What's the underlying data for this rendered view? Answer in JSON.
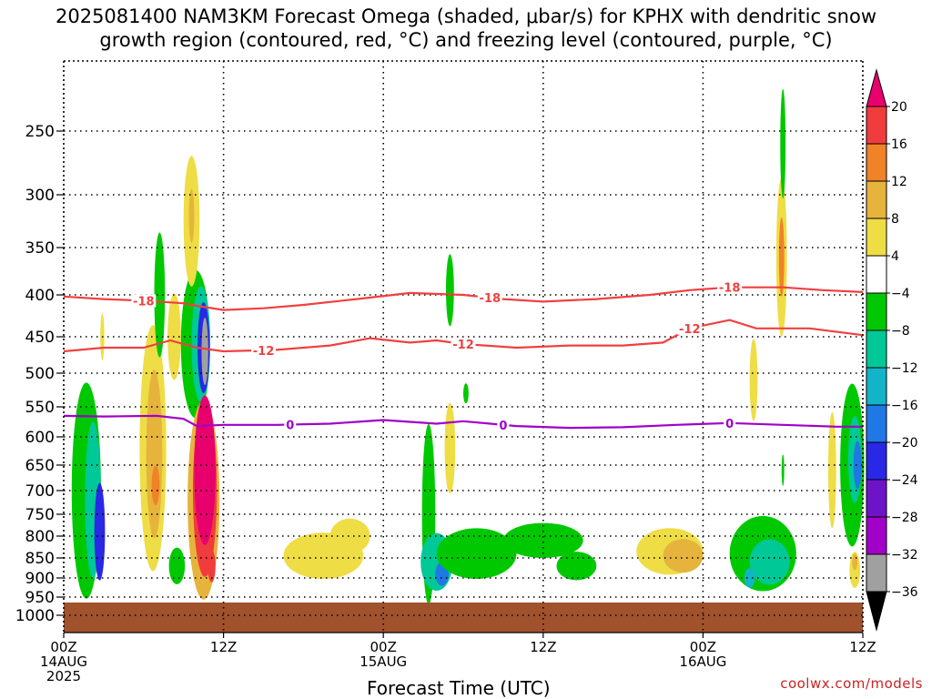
{
  "title_line1": "2025081400 NAM3KM Forecast Omega (shaded, μbar/s) for KPHX with dendritic snow",
  "title_line2": "growth region (contoured, red, °C) and freezing level (contoured, purple, °C)",
  "watermark": "coolwx.com/models",
  "chart_data": {
    "type": "heatmap",
    "title": "2025081400 NAM3KM Forecast Omega (shaded, μbar/s) for KPHX with dendritic snow growth region (contoured, red, °C) and freezing level (contoured, purple, °C)",
    "xlabel": "Forecast Time (UTC)",
    "ylabel": "",
    "x_unit": "forecast hour",
    "xlim": [
      0,
      60
    ],
    "y_unit": "mb",
    "ylim": [
      1040,
      200
    ],
    "x_ticks": [
      {
        "hour": 0,
        "lines": [
          "00Z",
          "14AUG",
          "2025"
        ]
      },
      {
        "hour": 12,
        "lines": [
          "12Z"
        ]
      },
      {
        "hour": 24,
        "lines": [
          "00Z",
          "15AUG"
        ]
      },
      {
        "hour": 36,
        "lines": [
          "12Z"
        ]
      },
      {
        "hour": 48,
        "lines": [
          "00Z",
          "16AUG"
        ]
      },
      {
        "hour": 60,
        "lines": [
          "12Z"
        ]
      }
    ],
    "y_ticks": [
      250,
      300,
      350,
      400,
      450,
      500,
      550,
      600,
      650,
      700,
      750,
      800,
      850,
      900,
      950,
      1000
    ],
    "grid": true,
    "colorbar": {
      "labels": [
        "20",
        "16",
        "12",
        "8",
        "4",
        "−4",
        "−8",
        "−12",
        "−16",
        "−20",
        "−24",
        "−28",
        "−32",
        "−36"
      ],
      "levels": [
        20,
        16,
        12,
        8,
        4,
        -4,
        -8,
        -12,
        -16,
        -20,
        -24,
        -28,
        -32,
        -36
      ],
      "colors": [
        "#e8006c",
        "#f03c3c",
        "#f08228",
        "#e6b43c",
        "#eedd44",
        "#ffffff",
        "#00c800",
        "#00c896",
        "#14b4c8",
        "#1e78e6",
        "#2828e6",
        "#6e14c8",
        "#a000c8",
        "#a0a0a0",
        "#000000"
      ]
    },
    "surface_pressure_mb": 965,
    "surface_color": "#a0522d",
    "contours": [
      {
        "temp": "-18",
        "color": "#f04040",
        "label_hours": [
          6,
          32,
          50
        ],
        "points": [
          [
            0,
            402
          ],
          [
            3,
            405
          ],
          [
            6,
            407
          ],
          [
            9,
            410
          ],
          [
            10,
            413
          ],
          [
            12,
            418
          ],
          [
            15,
            416
          ],
          [
            18,
            412
          ],
          [
            22,
            405
          ],
          [
            26,
            398
          ],
          [
            30,
            400
          ],
          [
            33,
            405
          ],
          [
            36,
            408
          ],
          [
            40,
            405
          ],
          [
            44,
            400
          ],
          [
            47,
            395
          ],
          [
            50,
            392
          ],
          [
            54,
            392
          ],
          [
            57,
            395
          ],
          [
            60,
            397
          ]
        ]
      },
      {
        "temp": "-12",
        "color": "#f04040",
        "label_hours": [
          15,
          30,
          47
        ],
        "points": [
          [
            0,
            470
          ],
          [
            3,
            465
          ],
          [
            6,
            465
          ],
          [
            8,
            455
          ],
          [
            10,
            465
          ],
          [
            12,
            470
          ],
          [
            16,
            468
          ],
          [
            20,
            462
          ],
          [
            23,
            452
          ],
          [
            26,
            458
          ],
          [
            28,
            455
          ],
          [
            30,
            460
          ],
          [
            34,
            465
          ],
          [
            38,
            462
          ],
          [
            42,
            462
          ],
          [
            45,
            458
          ],
          [
            47,
            440
          ],
          [
            50,
            430
          ],
          [
            52,
            440
          ],
          [
            56,
            440
          ],
          [
            60,
            448
          ]
        ]
      },
      {
        "temp": "0",
        "color": "#a000c8",
        "label_hours": [
          17,
          33,
          50
        ],
        "points": [
          [
            0,
            565
          ],
          [
            3,
            566
          ],
          [
            7,
            565
          ],
          [
            9,
            570
          ],
          [
            10,
            582
          ],
          [
            12,
            580
          ],
          [
            16,
            580
          ],
          [
            20,
            578
          ],
          [
            24,
            572
          ],
          [
            28,
            578
          ],
          [
            30,
            574
          ],
          [
            34,
            582
          ],
          [
            38,
            585
          ],
          [
            42,
            584
          ],
          [
            46,
            580
          ],
          [
            50,
            577
          ],
          [
            54,
            580
          ],
          [
            58,
            583
          ],
          [
            60,
            583
          ]
        ]
      }
    ],
    "omega_blobs": [
      {
        "hour": 1.7,
        "p": 700,
        "hw": 1.1,
        "hp": 210,
        "value": -8
      },
      {
        "hour": 2.2,
        "p": 720,
        "hw": 0.6,
        "hp": 160,
        "value": -12
      },
      {
        "hour": 2.7,
        "p": 790,
        "hw": 0.4,
        "hp": 110,
        "value": -24
      },
      {
        "hour": 2.9,
        "p": 450,
        "hw": 0.15,
        "hp": 30,
        "value": 4
      },
      {
        "hour": 6.7,
        "p": 620,
        "hw": 1.0,
        "hp": 210,
        "value": 4
      },
      {
        "hour": 6.8,
        "p": 630,
        "hw": 0.6,
        "hp": 150,
        "value": 8
      },
      {
        "hour": 6.9,
        "p": 690,
        "hw": 0.3,
        "hp": 40,
        "value": 12
      },
      {
        "hour": 7.2,
        "p": 400,
        "hw": 0.4,
        "hp": 70,
        "value": -8
      },
      {
        "hour": 8.3,
        "p": 450,
        "hw": 0.5,
        "hp": 55,
        "value": 4
      },
      {
        "hour": 8.5,
        "p": 870,
        "hw": 0.6,
        "hp": 45,
        "value": -8
      },
      {
        "hour": 9.9,
        "p": 460,
        "hw": 1.1,
        "hp": 95,
        "value": -8
      },
      {
        "hour": 10.3,
        "p": 460,
        "hw": 0.7,
        "hp": 75,
        "value": -12
      },
      {
        "hour": 10.5,
        "p": 465,
        "hw": 0.45,
        "hp": 60,
        "value": -24
      },
      {
        "hour": 10.6,
        "p": 470,
        "hw": 0.25,
        "hp": 45,
        "value": -36
      },
      {
        "hour": 9.6,
        "p": 325,
        "hw": 0.6,
        "hp": 60,
        "value": 4
      },
      {
        "hour": 9.6,
        "p": 320,
        "hw": 0.2,
        "hp": 25,
        "value": 8
      },
      {
        "hour": 10.5,
        "p": 720,
        "hw": 1.2,
        "hp": 200,
        "value": 8
      },
      {
        "hour": 10.6,
        "p": 700,
        "hw": 0.9,
        "hp": 170,
        "value": 16
      },
      {
        "hour": 10.6,
        "p": 660,
        "hw": 0.8,
        "hp": 140,
        "value": 20
      },
      {
        "hour": 11.1,
        "p": 870,
        "hw": 0.3,
        "hp": 40,
        "value": 16
      },
      {
        "hour": 19.5,
        "p": 845,
        "hw": 3.0,
        "hp": 55,
        "value": 4
      },
      {
        "hour": 21.5,
        "p": 800,
        "hw": 1.5,
        "hp": 40,
        "value": 4
      },
      {
        "hour": 27.4,
        "p": 750,
        "hw": 0.5,
        "hp": 190,
        "value": -8
      },
      {
        "hour": 28.0,
        "p": 860,
        "hw": 1.2,
        "hp": 70,
        "value": -12
      },
      {
        "hour": 28.4,
        "p": 890,
        "hw": 0.5,
        "hp": 30,
        "value": -20
      },
      {
        "hour": 31.0,
        "p": 840,
        "hw": 3.0,
        "hp": 60,
        "value": -8
      },
      {
        "hour": 36.0,
        "p": 810,
        "hw": 3.0,
        "hp": 40,
        "value": -8
      },
      {
        "hour": 38.5,
        "p": 870,
        "hw": 1.5,
        "hp": 35,
        "value": -8
      },
      {
        "hour": 29.0,
        "p": 620,
        "hw": 0.4,
        "hp": 80,
        "value": 4
      },
      {
        "hour": 29.0,
        "p": 395,
        "hw": 0.3,
        "hp": 40,
        "value": -8
      },
      {
        "hour": 30.2,
        "p": 530,
        "hw": 0.2,
        "hp": 15,
        "value": -8
      },
      {
        "hour": 45.5,
        "p": 835,
        "hw": 2.5,
        "hp": 55,
        "value": 4
      },
      {
        "hour": 46.5,
        "p": 845,
        "hw": 1.5,
        "hp": 40,
        "value": 8
      },
      {
        "hour": 52.5,
        "p": 840,
        "hw": 2.5,
        "hp": 90,
        "value": -8
      },
      {
        "hour": 53.0,
        "p": 860,
        "hw": 1.5,
        "hp": 55,
        "value": -12
      },
      {
        "hour": 51.5,
        "p": 900,
        "hw": 0.4,
        "hp": 25,
        "value": -16
      },
      {
        "hour": 53.9,
        "p": 360,
        "hw": 0.4,
        "hp": 80,
        "value": 4
      },
      {
        "hour": 53.9,
        "p": 360,
        "hw": 0.2,
        "hp": 40,
        "value": 12
      },
      {
        "hour": 54.0,
        "p": 260,
        "hw": 0.2,
        "hp": 40,
        "value": -8
      },
      {
        "hour": 51.8,
        "p": 510,
        "hw": 0.3,
        "hp": 60,
        "value": 4
      },
      {
        "hour": 54.0,
        "p": 660,
        "hw": 0.1,
        "hp": 30,
        "value": -8
      },
      {
        "hour": 59.2,
        "p": 650,
        "hw": 0.9,
        "hp": 150,
        "value": -8
      },
      {
        "hour": 59.4,
        "p": 640,
        "hw": 0.5,
        "hp": 80,
        "value": -12
      },
      {
        "hour": 59.6,
        "p": 650,
        "hw": 0.3,
        "hp": 45,
        "value": -20
      },
      {
        "hour": 57.7,
        "p": 660,
        "hw": 0.3,
        "hp": 110,
        "value": 4
      },
      {
        "hour": 59.4,
        "p": 880,
        "hw": 0.4,
        "hp": 45,
        "value": 4
      },
      {
        "hour": 59.4,
        "p": 860,
        "hw": 0.2,
        "hp": 20,
        "value": 8
      }
    ]
  }
}
